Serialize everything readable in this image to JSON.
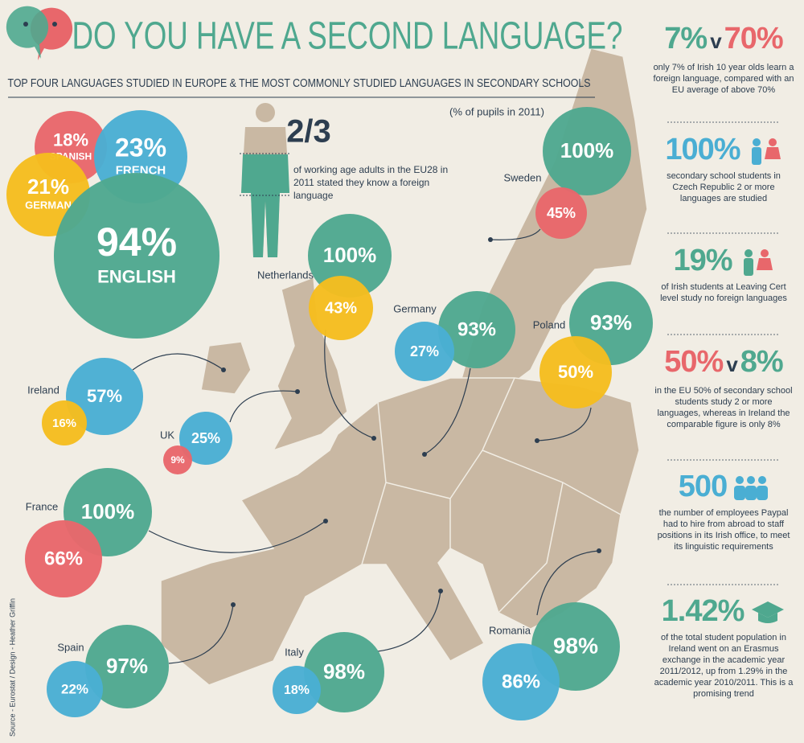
{
  "header": {
    "title": "DO YOU HAVE A SECOND LANGUAGE?",
    "subtitle": "TOP FOUR LANGUAGES STUDIED IN EUROPE & THE MOST COMMONLY STUDIED LANGUAGES IN SECONDARY SCHOOLS",
    "note": "(% of pupils in 2011)"
  },
  "top_languages": [
    {
      "value": "18%",
      "label": "SPANISH"
    },
    {
      "value": "23%",
      "label": "FRENCH"
    },
    {
      "value": "21%",
      "label": "GERMAN"
    },
    {
      "value": "94%",
      "label": "ENGLISH"
    }
  ],
  "adults": {
    "value": "2/3",
    "text": "of working age adults in the EU28 in 2011 stated they know a foreign language"
  },
  "countries": [
    {
      "name": "Sweden",
      "bubbles": [
        "100%",
        "45%"
      ]
    },
    {
      "name": "Netherlands",
      "bubbles": [
        "100%",
        "43%"
      ]
    },
    {
      "name": "Germany",
      "bubbles": [
        "93%",
        "27%"
      ]
    },
    {
      "name": "Poland",
      "bubbles": [
        "93%",
        "50%"
      ]
    },
    {
      "name": "Ireland",
      "bubbles": [
        "57%",
        "16%"
      ]
    },
    {
      "name": "UK",
      "bubbles": [
        "25%",
        "9%"
      ]
    },
    {
      "name": "France",
      "bubbles": [
        "100%",
        "66%"
      ]
    },
    {
      "name": "Spain",
      "bubbles": [
        "97%",
        "22%"
      ]
    },
    {
      "name": "Italy",
      "bubbles": [
        "98%",
        "18%"
      ]
    },
    {
      "name": "Romania",
      "bubbles": [
        "98%",
        "86%"
      ]
    }
  ],
  "facts": [
    {
      "parts": [
        {
          "text": "7%",
          "color": "#4fa88f"
        },
        {
          "text": "v",
          "color": "#2d3e50"
        },
        {
          "text": "70%",
          "color": "#e8676b"
        }
      ],
      "text": "only 7% of Irish 10 year olds learn a foreign language, compared with an EU average of above 70%"
    },
    {
      "parts": [
        {
          "text": "100%",
          "color": "#4aaed3"
        }
      ],
      "text": "secondary school students in Czech Republic 2 or more languages are studied"
    },
    {
      "parts": [
        {
          "text": "19%",
          "color": "#4fa88f"
        }
      ],
      "text": "of Irish students at Leaving Cert level study no foreign languages"
    },
    {
      "parts": [
        {
          "text": "50%",
          "color": "#e8676b"
        },
        {
          "text": "v",
          "color": "#2d3e50"
        },
        {
          "text": "8%",
          "color": "#4fa88f"
        }
      ],
      "text": "in the EU 50% of secondary school students study 2 or more languages, whereas in Ireland the comparable figure is only 8%"
    },
    {
      "parts": [
        {
          "text": "500",
          "color": "#4aaed3"
        }
      ],
      "text": "the number of employees Paypal had to hire from abroad to staff positions in its Irish office, to meet its linguistic requirements"
    },
    {
      "parts": [
        {
          "text": "1.42%",
          "color": "#4fa88f"
        }
      ],
      "text": "of the total student population in Ireland went on an Erasmus exchange in the academic year 2011/2012, up from 1.29% in the academic year 2010/2011. This is a promising trend"
    }
  ],
  "source": "Source - Eurostat / Design - Heather Griffin"
}
